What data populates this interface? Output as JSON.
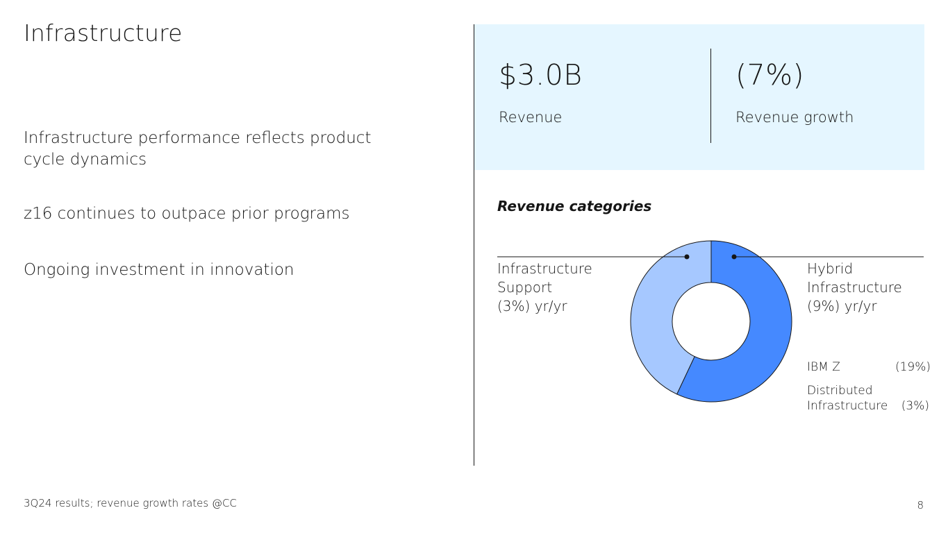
{
  "slide": {
    "title": "Infrastructure",
    "bullets": [
      "Infrastructure performance reflects product cycle dynamics",
      "z16 continues to outpace prior programs",
      "Ongoing investment in innovation"
    ],
    "footnote": "3Q24 results; revenue growth rates @CC",
    "page_number": "8"
  },
  "kpis": [
    {
      "value": "$3.0B",
      "label": "Revenue"
    },
    {
      "value": "(7%)",
      "label": "Revenue growth"
    }
  ],
  "colors": {
    "kpi_background": "#e5f6ff",
    "hybrid": "#4589ff",
    "support": "#a6c8ff"
  },
  "chart_data": {
    "type": "pie",
    "title": "Revenue categories",
    "donut": true,
    "series": [
      {
        "name": "Hybrid Infrastructure",
        "share": 0.57,
        "color": "#4589ff"
      },
      {
        "name": "Infrastructure Support",
        "share": 0.43,
        "color": "#a6c8ff"
      }
    ],
    "callouts": {
      "left": [
        "Infrastructure",
        "Support",
        "(3%) yr/yr"
      ],
      "right": [
        "Hybrid",
        "Infrastructure",
        "(9%) yr/yr"
      ]
    },
    "sub_items": [
      {
        "name": "IBM Z",
        "growth": "(19%)"
      },
      {
        "name_lines": [
          "Distributed",
          "Infrastructure"
        ],
        "growth": "(3%)"
      }
    ]
  }
}
